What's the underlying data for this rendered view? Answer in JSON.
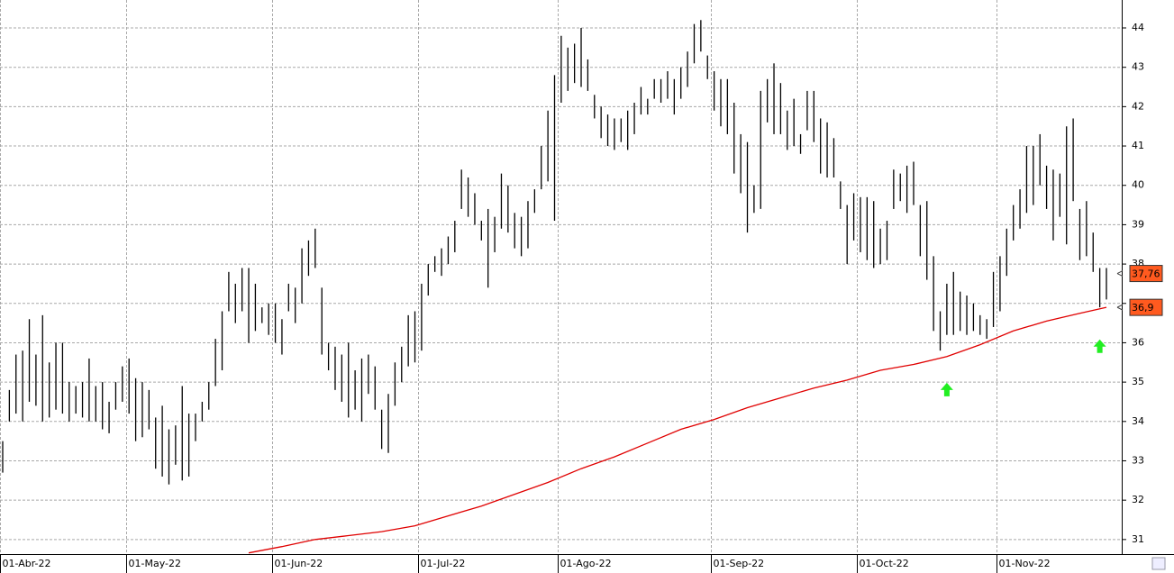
{
  "chart_data": {
    "type": "ohlc",
    "x": [
      "2022-04-01",
      "2022-04-04",
      "2022-04-05",
      "2022-04-06",
      "2022-04-07",
      "2022-04-08",
      "2022-04-11",
      "2022-04-12",
      "2022-04-13",
      "2022-04-14",
      "2022-04-19",
      "2022-04-20",
      "2022-04-21",
      "2022-04-22",
      "2022-04-25",
      "2022-04-26",
      "2022-04-27",
      "2022-04-28",
      "2022-04-29",
      "2022-05-02",
      "2022-05-03",
      "2022-05-04",
      "2022-05-05",
      "2022-05-06",
      "2022-05-09",
      "2022-05-10",
      "2022-05-11",
      "2022-05-12",
      "2022-05-13",
      "2022-05-16",
      "2022-05-17",
      "2022-05-18",
      "2022-05-19",
      "2022-05-20",
      "2022-05-23",
      "2022-05-24",
      "2022-05-25",
      "2022-05-26",
      "2022-05-27",
      "2022-05-30",
      "2022-05-31",
      "2022-06-01",
      "2022-06-02",
      "2022-06-03",
      "2022-06-06",
      "2022-06-07",
      "2022-06-08",
      "2022-06-09",
      "2022-06-10",
      "2022-06-13",
      "2022-06-14",
      "2022-06-15",
      "2022-06-16",
      "2022-06-17",
      "2022-06-20",
      "2022-06-21",
      "2022-06-22",
      "2022-06-23",
      "2022-06-24",
      "2022-06-27",
      "2022-06-28",
      "2022-06-29",
      "2022-06-30",
      "2022-07-01",
      "2022-07-04",
      "2022-07-05",
      "2022-07-06",
      "2022-07-07",
      "2022-07-08",
      "2022-07-11",
      "2022-07-12",
      "2022-07-13",
      "2022-07-14",
      "2022-07-15",
      "2022-07-18",
      "2022-07-19",
      "2022-07-20",
      "2022-07-21",
      "2022-07-22",
      "2022-07-25",
      "2022-07-26",
      "2022-07-27",
      "2022-07-28",
      "2022-07-29",
      "2022-08-01",
      "2022-08-02",
      "2022-08-03",
      "2022-08-04",
      "2022-08-05",
      "2022-08-08",
      "2022-08-09",
      "2022-08-10",
      "2022-08-11",
      "2022-08-12",
      "2022-08-15",
      "2022-08-16",
      "2022-08-17",
      "2022-08-18",
      "2022-08-19",
      "2022-08-22",
      "2022-08-23",
      "2022-08-24",
      "2022-08-25",
      "2022-08-26",
      "2022-08-29",
      "2022-08-30",
      "2022-08-31",
      "2022-09-01",
      "2022-09-02",
      "2022-09-05",
      "2022-09-06",
      "2022-09-07",
      "2022-09-08",
      "2022-09-09",
      "2022-09-12",
      "2022-09-13",
      "2022-09-14",
      "2022-09-15",
      "2022-09-16",
      "2022-09-19",
      "2022-09-20",
      "2022-09-21",
      "2022-09-22",
      "2022-09-23",
      "2022-09-26",
      "2022-09-27",
      "2022-09-28",
      "2022-09-29",
      "2022-09-30",
      "2022-10-03",
      "2022-10-04",
      "2022-10-05",
      "2022-10-06",
      "2022-10-07",
      "2022-10-10",
      "2022-10-11",
      "2022-10-12",
      "2022-10-13",
      "2022-10-14",
      "2022-10-17",
      "2022-10-18",
      "2022-10-19",
      "2022-10-20",
      "2022-10-21",
      "2022-10-24",
      "2022-10-25",
      "2022-10-26",
      "2022-10-27",
      "2022-10-28",
      "2022-10-31",
      "2022-11-01",
      "2022-11-02",
      "2022-11-03",
      "2022-11-04",
      "2022-11-07",
      "2022-11-08",
      "2022-11-09",
      "2022-11-10",
      "2022-11-11",
      "2022-11-14",
      "2022-11-15",
      "2022-11-16",
      "2022-11-17",
      "2022-11-18",
      "2022-11-21",
      "2022-11-22",
      "2022-11-23"
    ],
    "high": [
      33.5,
      34.8,
      35.7,
      35.8,
      36.6,
      35.7,
      36.7,
      35.5,
      36,
      36,
      35,
      34.9,
      35,
      35.6,
      34.9,
      35,
      34.5,
      35,
      35.4,
      35.6,
      35.1,
      35,
      34.8,
      34.1,
      34.4,
      33.8,
      33.9,
      34.9,
      34.2,
      34.2,
      34.5,
      35,
      36.1,
      36.8,
      37.8,
      37.5,
      37.9,
      37.9,
      37.5,
      36.9,
      37,
      37,
      36.6,
      37.5,
      37.4,
      38.4,
      38.6,
      38.9,
      37.4,
      36,
      35.9,
      35.7,
      36,
      35.3,
      35.6,
      35.7,
      35.4,
      34.3,
      34.7,
      35.5,
      35.9,
      36.7,
      36.8,
      37.5,
      38,
      38.2,
      38.4,
      38.7,
      39.1,
      40.4,
      40.2,
      39.8,
      39.1,
      39.4,
      39.2,
      40.3,
      40,
      39.3,
      39.2,
      39.6,
      39.9,
      41,
      41.9,
      42.8,
      43.8,
      43.5,
      43.6,
      44,
      43.2,
      42.3,
      42,
      41.8,
      41.7,
      41.7,
      41.9,
      42.1,
      42.5,
      42.2,
      42.7,
      42.7,
      42.9,
      42.7,
      43,
      43.4,
      44.1,
      44.2,
      43.3,
      42.9,
      42.7,
      42.7,
      42.1,
      41.3,
      41.1,
      40,
      42.4,
      42.7,
      43.1,
      42.6,
      41.9,
      42.2,
      41.3,
      42.4,
      42.4,
      41.7,
      41.6,
      41.2,
      40.1,
      39.5,
      39.8,
      39.7,
      39.7,
      39.6,
      38.9,
      39.1,
      40.4,
      40.3,
      40.5,
      40.6,
      39.5,
      39.6,
      38.2,
      36.8,
      37.5,
      37.8,
      37.3,
      37.2,
      37,
      36.7,
      36.6,
      37.8,
      38.2,
      38.9,
      39.5,
      39.9,
      41,
      41,
      41.3,
      40.5,
      40.4,
      40.3,
      41.5,
      41.7,
      39.4,
      39.6,
      38.8,
      37.9,
      37.9
    ],
    "low": [
      32.7,
      34,
      34.2,
      34,
      34.5,
      34.4,
      34,
      34.1,
      34.3,
      34.2,
      34,
      34.2,
      34.1,
      34,
      34,
      33.8,
      33.7,
      34.3,
      34.5,
      34.2,
      33.5,
      33.6,
      33.8,
      32.8,
      32.6,
      32.4,
      32.9,
      32.5,
      32.6,
      33.5,
      34,
      34.3,
      34.9,
      35.3,
      36.8,
      36.5,
      36.8,
      36,
      36.3,
      36.5,
      36.2,
      36,
      35.7,
      36.8,
      36.5,
      37,
      37.7,
      37.9,
      35.7,
      35.3,
      34.8,
      34.5,
      34.1,
      34.3,
      34,
      34.7,
      34.3,
      33.3,
      33.2,
      34.4,
      35,
      35.4,
      35.5,
      35.8,
      37.2,
      37.8,
      37.7,
      38,
      38.3,
      39.4,
      39.2,
      39,
      38.6,
      37.4,
      38.3,
      38.9,
      38.8,
      38.4,
      38.2,
      38.4,
      39.3,
      39.9,
      40.1,
      39.1,
      42.1,
      42.4,
      42.6,
      42.5,
      42.4,
      41.7,
      41.2,
      41,
      40.9,
      41.1,
      40.9,
      41.3,
      41.8,
      41.8,
      42.2,
      42.1,
      42.2,
      41.8,
      42.2,
      42.5,
      43.1,
      43.4,
      42.7,
      41.9,
      41.5,
      41.3,
      40.3,
      39.8,
      38.8,
      39.3,
      39.4,
      41.6,
      41.3,
      41.3,
      40.9,
      41,
      40.8,
      41.4,
      41.1,
      40.3,
      40.2,
      40.2,
      39.4,
      38,
      38.6,
      38.3,
      38.1,
      37.9,
      38,
      38.1,
      39.4,
      39.6,
      39.3,
      39.5,
      38.2,
      37.6,
      36.3,
      35.8,
      36.2,
      36.2,
      36.3,
      36.2,
      36.3,
      36.2,
      36.1,
      36.4,
      36.8,
      37.7,
      38.6,
      38.9,
      39.3,
      39.5,
      40,
      39.4,
      38.6,
      39.2,
      38.5,
      39.6,
      38.1,
      38.2,
      37.8,
      36.9,
      37.1
    ],
    "color": "#000000",
    "moving_average": {
      "color": "#e00000",
      "x": [
        "2022-05-26",
        "2022-06-02",
        "2022-06-09",
        "2022-06-16",
        "2022-06-23",
        "2022-06-30",
        "2022-07-07",
        "2022-07-14",
        "2022-07-21",
        "2022-07-28",
        "2022-08-04",
        "2022-08-11",
        "2022-08-18",
        "2022-08-25",
        "2022-09-01",
        "2022-09-08",
        "2022-09-15",
        "2022-09-22",
        "2022-09-29",
        "2022-10-06",
        "2022-10-13",
        "2022-10-20",
        "2022-10-27",
        "2022-11-03",
        "2022-11-10",
        "2022-11-17",
        "2022-11-23"
      ],
      "values": [
        30.66,
        30.82,
        31.0,
        31.1,
        31.2,
        31.35,
        31.6,
        31.85,
        32.15,
        32.45,
        32.8,
        33.1,
        33.45,
        33.8,
        34.05,
        34.35,
        34.6,
        34.85,
        35.05,
        35.3,
        35.45,
        35.65,
        35.95,
        36.3,
        36.55,
        36.75,
        36.9
      ]
    },
    "signals": {
      "color": "#22ee22",
      "x": [
        "2022-10-20",
        "2022-11-22"
      ],
      "values": [
        34.8,
        35.9
      ]
    },
    "price_labels": [
      {
        "value": 37.76,
        "label": "37,76",
        "color": "#ff5a1f"
      },
      {
        "value": 36.9,
        "label": "36,9",
        "color": "#ff5a1f"
      }
    ],
    "ylim": [
      30.63,
      44.71
    ],
    "yticks": [
      31,
      32,
      33,
      34,
      35,
      36,
      37,
      38,
      39,
      40,
      41,
      42,
      43,
      44
    ],
    "xticks": [
      {
        "value": "2022-04-01",
        "label": "01-Abr-22"
      },
      {
        "value": "2022-05-01",
        "label": "01-May-22"
      },
      {
        "value": "2022-06-01",
        "label": "01-Jun-22"
      },
      {
        "value": "2022-07-01",
        "label": "01-Jul-22"
      },
      {
        "value": "2022-08-01",
        "label": "01-Ago-22"
      },
      {
        "value": "2022-09-01",
        "label": "01-Sep-22"
      },
      {
        "value": "2022-10-01",
        "label": "01-Oct-22"
      },
      {
        "value": "2022-11-01",
        "label": "01-Nov-22"
      }
    ],
    "grid": true
  }
}
